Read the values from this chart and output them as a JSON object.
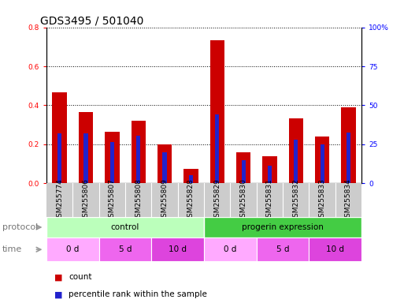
{
  "title": "GDS3495 / 501040",
  "samples": [
    "GSM255774",
    "GSM255806",
    "GSM255807",
    "GSM255808",
    "GSM255809",
    "GSM255828",
    "GSM255829",
    "GSM255830",
    "GSM255831",
    "GSM255832",
    "GSM255833",
    "GSM255834"
  ],
  "count_values": [
    0.465,
    0.365,
    0.265,
    0.32,
    0.2,
    0.075,
    0.735,
    0.16,
    0.14,
    0.335,
    0.24,
    0.39
  ],
  "percentile_values": [
    0.255,
    0.255,
    0.21,
    0.245,
    0.16,
    0.04,
    0.355,
    0.12,
    0.09,
    0.225,
    0.2,
    0.26
  ],
  "ylim_left": [
    0,
    0.8
  ],
  "ylim_right": [
    0,
    100
  ],
  "yticks_left": [
    0,
    0.2,
    0.4,
    0.6,
    0.8
  ],
  "yticks_right": [
    0,
    25,
    50,
    75,
    100
  ],
  "ytick_labels_right": [
    "0",
    "25",
    "50",
    "75",
    "100%"
  ],
  "bar_width": 0.55,
  "count_color": "#CC0000",
  "percentile_color": "#2222CC",
  "grid_color": "black",
  "protocol_groups": [
    {
      "label": "control",
      "start": 0,
      "end": 6,
      "color": "#BBFFBB"
    },
    {
      "label": "progerin expression",
      "start": 6,
      "end": 12,
      "color": "#44CC44"
    }
  ],
  "time_groups": [
    {
      "label": "0 d",
      "start": 0,
      "end": 2,
      "color": "#FFAAFF"
    },
    {
      "label": "5 d",
      "start": 2,
      "end": 4,
      "color": "#EE66EE"
    },
    {
      "label": "10 d",
      "start": 4,
      "end": 6,
      "color": "#DD44DD"
    },
    {
      "label": "0 d",
      "start": 6,
      "end": 8,
      "color": "#FFAAFF"
    },
    {
      "label": "5 d",
      "start": 8,
      "end": 10,
      "color": "#EE66EE"
    },
    {
      "label": "10 d",
      "start": 10,
      "end": 12,
      "color": "#DD44DD"
    }
  ],
  "protocol_label": "protocol",
  "time_label": "time",
  "legend_count": "count",
  "legend_percentile": "percentile rank within the sample",
  "background_color": "#FFFFFF",
  "sample_bg_color": "#CCCCCC",
  "title_fontsize": 10,
  "tick_fontsize": 6.5,
  "label_fontsize": 8,
  "legend_fontsize": 7.5
}
